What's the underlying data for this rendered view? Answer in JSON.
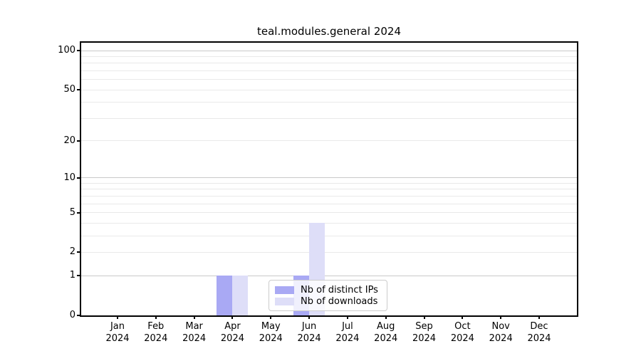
{
  "chart_data": {
    "type": "bar",
    "title": "teal.modules.general 2024",
    "categories": [
      "Jan",
      "Feb",
      "Mar",
      "Apr",
      "May",
      "Jun",
      "Jul",
      "Aug",
      "Sep",
      "Oct",
      "Nov",
      "Dec"
    ],
    "category_year_label": "2024",
    "series": [
      {
        "name": "Nb of distinct IPs",
        "color": "#a9a9f4",
        "values": [
          0,
          0,
          0,
          1,
          0,
          1,
          0,
          0,
          0,
          0,
          0,
          0
        ]
      },
      {
        "name": "Nb of downloads",
        "color": "#dedef8",
        "values": [
          0,
          0,
          0,
          1,
          0,
          4,
          0,
          0,
          0,
          0,
          0,
          0
        ]
      }
    ],
    "xlabel": "",
    "ylabel": "",
    "yscale": "log1p",
    "ylim": [
      0,
      115
    ],
    "y_ticks": [
      0,
      1,
      2,
      5,
      10,
      20,
      50,
      100
    ],
    "y_grid_major": [
      1,
      10,
      100
    ],
    "y_grid_minor": [
      2,
      3,
      4,
      5,
      6,
      7,
      8,
      9,
      20,
      30,
      40,
      50,
      60,
      70,
      80,
      90
    ],
    "grid": "both",
    "grid_color_major": "#c9c9c9",
    "grid_color_minor": "#e9e9e9",
    "axis_color": "#000000",
    "legend": {
      "position": "lower center",
      "border_color": "#cccccc",
      "background": "rgba(255,255,255,0.82)"
    }
  }
}
